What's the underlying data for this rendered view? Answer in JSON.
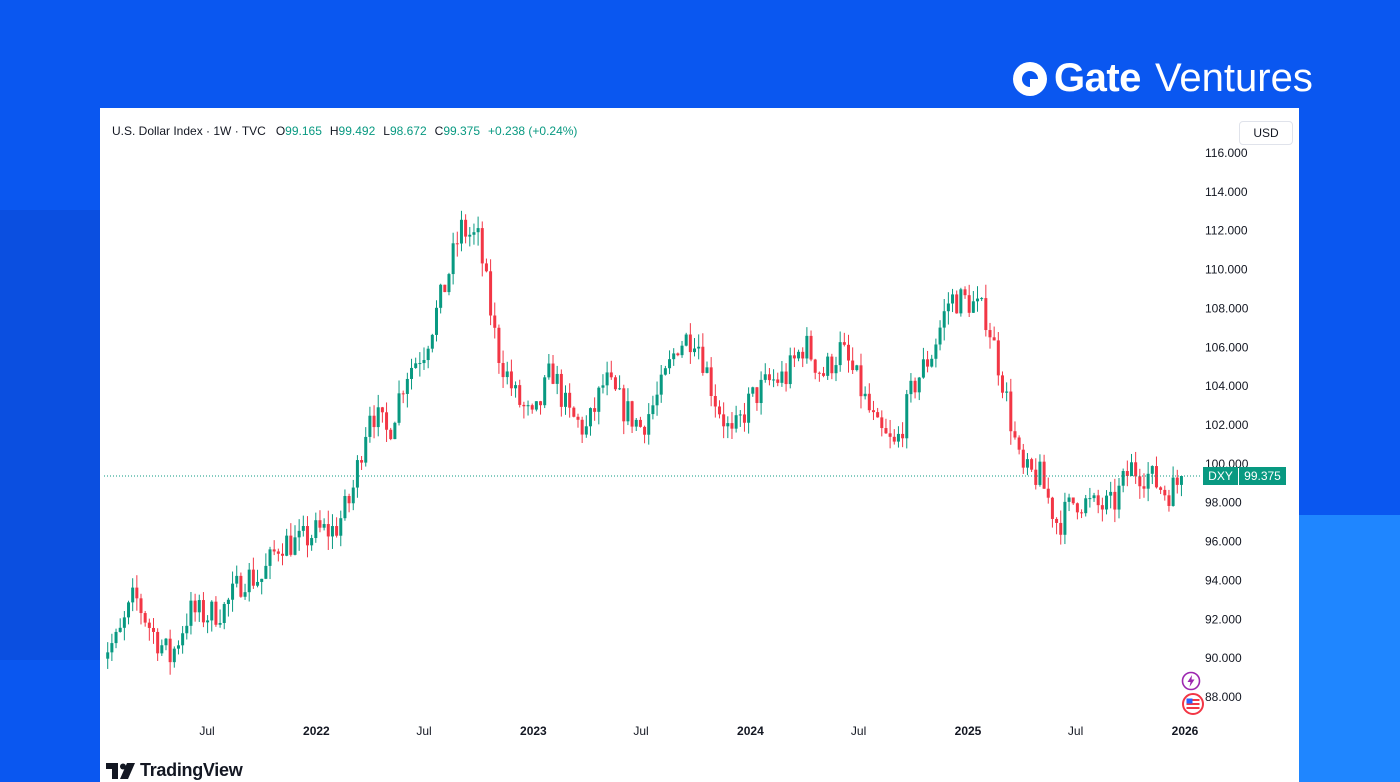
{
  "brand": {
    "name": "Gate",
    "sub": "Ventures"
  },
  "legend": {
    "symbol": "U.S. Dollar Index · 1W · TVC",
    "o_label": "O",
    "o_value": "99.165",
    "h_label": "H",
    "h_value": "99.492",
    "l_label": "L",
    "l_value": "98.672",
    "c_label": "C",
    "c_value": "99.375",
    "change": "+0.238 (+0.24%)"
  },
  "currency_button": "USD",
  "footer_logo": "TradingView",
  "colors": {
    "up": "#089981",
    "down": "#f23645",
    "background_blue": "#0a57f0"
  },
  "chart_data": {
    "type": "candlestick",
    "series_name": "U.S. Dollar Index",
    "interval": "1W",
    "source": "TVC",
    "ylim": [
      87,
      116.5
    ],
    "y_ticks": [
      "116.000",
      "114.000",
      "112.000",
      "110.000",
      "108.000",
      "106.000",
      "104.000",
      "102.000",
      "100.000",
      "98.000",
      "96.000",
      "94.000",
      "92.000",
      "90.000",
      "88.000"
    ],
    "x_tick_labels": [
      "Jul",
      "2022",
      "Jul",
      "2023",
      "Jul",
      "2024",
      "Jul",
      "2025",
      "Jul",
      "2026"
    ],
    "x_tick_dates": [
      "2021-07-01",
      "2022-01-01",
      "2022-07-01",
      "2023-01-01",
      "2023-07-01",
      "2024-01-01",
      "2024-07-01",
      "2025-01-01",
      "2025-07-01",
      "2026-01-01"
    ],
    "last_price": {
      "label": "DXY",
      "value": "99.375",
      "y": 99.375
    },
    "price_line": true,
    "grid": false,
    "closes_weekly": [
      {
        "date": "2021-01-01",
        "close": 90.3
      },
      {
        "date": "2021-02-01",
        "close": 90.9
      },
      {
        "date": "2021-03-01",
        "close": 93.2
      },
      {
        "date": "2021-04-01",
        "close": 91.3
      },
      {
        "date": "2021-05-01",
        "close": 90.0
      },
      {
        "date": "2021-06-01",
        "close": 92.4
      },
      {
        "date": "2021-07-01",
        "close": 92.2
      },
      {
        "date": "2021-08-01",
        "close": 92.6
      },
      {
        "date": "2021-09-01",
        "close": 94.2
      },
      {
        "date": "2021-10-01",
        "close": 94.1
      },
      {
        "date": "2021-11-01",
        "close": 96.0
      },
      {
        "date": "2021-12-01",
        "close": 95.9
      },
      {
        "date": "2022-01-01",
        "close": 96.5
      },
      {
        "date": "2022-02-01",
        "close": 96.6
      },
      {
        "date": "2022-03-01",
        "close": 98.3
      },
      {
        "date": "2022-04-01",
        "close": 102.9
      },
      {
        "date": "2022-05-01",
        "close": 101.5
      },
      {
        "date": "2022-06-01",
        "close": 104.7
      },
      {
        "date": "2022-07-01",
        "close": 105.9
      },
      {
        "date": "2022-08-01",
        "close": 108.7
      },
      {
        "date": "2022-09-01",
        "close": 112.1
      },
      {
        "date": "2022-10-01",
        "close": 111.5
      },
      {
        "date": "2022-11-01",
        "close": 105.9
      },
      {
        "date": "2022-12-01",
        "close": 103.5
      },
      {
        "date": "2023-01-01",
        "close": 102.1
      },
      {
        "date": "2023-02-01",
        "close": 104.9
      },
      {
        "date": "2023-03-01",
        "close": 102.5
      },
      {
        "date": "2023-04-01",
        "close": 101.7
      },
      {
        "date": "2023-05-01",
        "close": 104.3
      },
      {
        "date": "2023-06-01",
        "close": 102.9
      },
      {
        "date": "2023-07-01",
        "close": 101.9
      },
      {
        "date": "2023-08-01",
        "close": 103.6
      },
      {
        "date": "2023-09-01",
        "close": 106.2
      },
      {
        "date": "2023-10-01",
        "close": 106.7
      },
      {
        "date": "2023-11-01",
        "close": 103.5
      },
      {
        "date": "2023-12-01",
        "close": 101.3
      },
      {
        "date": "2024-01-01",
        "close": 103.3
      },
      {
        "date": "2024-02-01",
        "close": 104.2
      },
      {
        "date": "2024-03-01",
        "close": 104.5
      },
      {
        "date": "2024-04-01",
        "close": 106.2
      },
      {
        "date": "2024-05-01",
        "close": 104.6
      },
      {
        "date": "2024-06-01",
        "close": 105.9
      },
      {
        "date": "2024-07-01",
        "close": 104.1
      },
      {
        "date": "2024-08-01",
        "close": 101.7
      },
      {
        "date": "2024-09-01",
        "close": 100.8
      },
      {
        "date": "2024-10-01",
        "close": 104.0
      },
      {
        "date": "2024-11-01",
        "close": 105.7
      },
      {
        "date": "2024-12-01",
        "close": 108.5
      },
      {
        "date": "2025-01-01",
        "close": 108.4
      },
      {
        "date": "2025-02-01",
        "close": 107.6
      },
      {
        "date": "2025-03-01",
        "close": 104.2
      },
      {
        "date": "2025-04-01",
        "close": 99.5
      },
      {
        "date": "2025-05-01",
        "close": 99.4
      },
      {
        "date": "2025-06-01",
        "close": 96.9
      },
      {
        "date": "2025-07-01",
        "close": 98.2
      },
      {
        "date": "2025-08-01",
        "close": 97.8
      },
      {
        "date": "2025-09-01",
        "close": 97.8
      },
      {
        "date": "2025-10-01",
        "close": 99.8
      },
      {
        "date": "2025-11-01",
        "close": 99.4
      },
      {
        "date": "2025-12-01",
        "close": 98.5
      },
      {
        "date": "2026-01-01",
        "close": 99.375
      }
    ]
  }
}
